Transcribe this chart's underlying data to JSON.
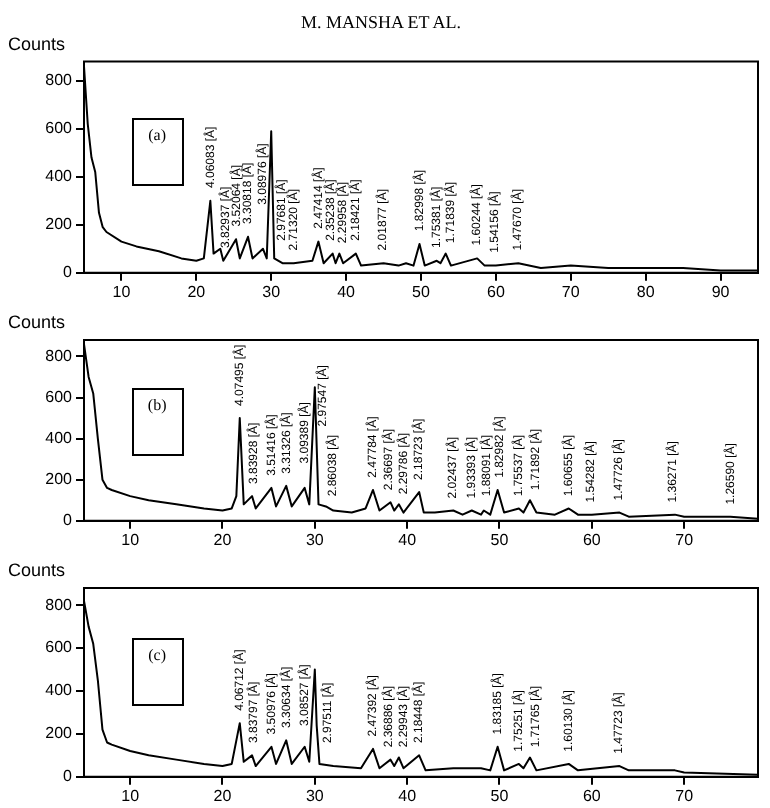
{
  "chart_data": [
    {
      "type": "line",
      "title": "M. MANSHA ET AL.",
      "ylabel": "Counts",
      "xlim": [
        5,
        95
      ],
      "ylim": [
        0,
        880
      ],
      "xticks": [
        10,
        20,
        30,
        40,
        50,
        60,
        70,
        80,
        90
      ],
      "yticks": [
        0,
        200,
        400,
        600,
        800
      ],
      "grid": false,
      "marker": "none",
      "legend": false,
      "series": [
        {
          "color": "#000000",
          "x": [
            5,
            5.5,
            6,
            6.5,
            7,
            7.5,
            8,
            10,
            12,
            15,
            18,
            20,
            21,
            21.87,
            22.3,
            23.2,
            23.6,
            25.3,
            25.8,
            26.9,
            27.5,
            28.9,
            29.4,
            30.0,
            30.4,
            31.5,
            33,
            35.5,
            36.3,
            37,
            38.2,
            38.6,
            39.1,
            39.6,
            41.3,
            42,
            45,
            47,
            48,
            49,
            49.8,
            50.5,
            52.1,
            52.6,
            53.3,
            54,
            57.5,
            58.5,
            60,
            63,
            66,
            70,
            75,
            80,
            85,
            90,
            95
          ],
          "values": [
            860,
            620,
            480,
            420,
            250,
            190,
            170,
            130,
            110,
            90,
            60,
            50,
            60,
            300,
            80,
            100,
            50,
            140,
            60,
            150,
            60,
            100,
            60,
            590,
            60,
            40,
            40,
            50,
            130,
            40,
            80,
            40,
            80,
            40,
            80,
            30,
            40,
            30,
            40,
            30,
            120,
            30,
            50,
            40,
            80,
            30,
            60,
            30,
            30,
            40,
            20,
            30,
            20,
            20,
            20,
            10,
            10
          ]
        }
      ],
      "annotations": [
        "(a)",
        {
          "text": "4.06083 [Å]",
          "x": 21.9,
          "y": 320
        },
        {
          "text": "3.82937 [Å]",
          "x": 23.9,
          "y": 70
        },
        {
          "text": "3.52064 [Å]",
          "x": 25.4,
          "y": 160
        },
        {
          "text": "3.30818 [Å]",
          "x": 26.9,
          "y": 170
        },
        {
          "text": "3.08976 [Å]",
          "x": 28.9,
          "y": 250
        },
        {
          "text": "2.97681 [Å]",
          "x": 31.4,
          "y": 100
        },
        {
          "text": "2.71320 [Å]",
          "x": 33.0,
          "y": 60
        },
        {
          "text": "2.47414 [Å]",
          "x": 36.3,
          "y": 150
        },
        {
          "text": "2.35238 [Å]",
          "x": 38.0,
          "y": 100
        },
        {
          "text": "2.29958 [Å]",
          "x": 39.6,
          "y": 90
        },
        {
          "text": "2.18421 [Å]",
          "x": 41.3,
          "y": 100
        },
        {
          "text": "2.01877 [Å]",
          "x": 44.9,
          "y": 60
        },
        {
          "text": "1.82998 [Å]",
          "x": 49.8,
          "y": 140
        },
        {
          "text": "1.75381 [Å]",
          "x": 52.1,
          "y": 70
        },
        {
          "text": "1.71839 [Å]",
          "x": 53.9,
          "y": 90
        },
        {
          "text": "1.60244 [Å]",
          "x": 57.5,
          "y": 80
        },
        {
          "text": "1.54156 [Å]",
          "x": 59.9,
          "y": 50
        },
        {
          "text": "1.47670 [Å]",
          "x": 62.9,
          "y": 60
        }
      ]
    },
    {
      "type": "line",
      "ylabel": "Counts",
      "xlim": [
        5,
        78
      ],
      "ylim": [
        0,
        880
      ],
      "xticks": [
        10,
        20,
        30,
        40,
        50,
        60,
        70
      ],
      "yticks": [
        0,
        200,
        400,
        600,
        800
      ],
      "grid": false,
      "marker": "none",
      "legend": false,
      "series": [
        {
          "color": "#000000",
          "x": [
            5,
            5.5,
            6,
            6.5,
            7,
            7.5,
            8,
            10,
            12,
            15,
            18,
            20,
            21,
            21.5,
            21.87,
            22.3,
            23.2,
            23.6,
            25.3,
            25.8,
            26.9,
            27.5,
            28.9,
            29.4,
            30.0,
            30.4,
            31.2,
            32,
            34,
            35.5,
            36.3,
            37,
            38.2,
            38.6,
            39.1,
            39.6,
            41.3,
            41.8,
            43,
            45,
            46,
            47,
            48,
            48.3,
            49,
            49.8,
            50.5,
            52.1,
            52.6,
            53.3,
            54,
            56,
            57.5,
            58.5,
            60,
            63,
            64,
            69,
            70,
            75,
            78
          ],
          "values": [
            860,
            700,
            620,
            400,
            200,
            160,
            150,
            120,
            100,
            80,
            60,
            50,
            60,
            120,
            500,
            80,
            120,
            60,
            160,
            70,
            170,
            70,
            160,
            80,
            650,
            80,
            70,
            50,
            40,
            60,
            150,
            50,
            90,
            50,
            80,
            40,
            140,
            40,
            40,
            50,
            30,
            50,
            30,
            50,
            30,
            150,
            40,
            60,
            40,
            100,
            40,
            30,
            60,
            30,
            30,
            40,
            20,
            30,
            20,
            20,
            10
          ]
        }
      ],
      "annotations": [
        "(b)",
        {
          "text": "4.07495 [Å]",
          "x": 21.9,
          "y": 520
        },
        {
          "text": "3.83928 [Å]",
          "x": 23.4,
          "y": 140
        },
        {
          "text": "3.51416 [Å]",
          "x": 25.3,
          "y": 180
        },
        {
          "text": "3.31326 [Å]",
          "x": 26.9,
          "y": 190
        },
        {
          "text": "3.09389 [Å]",
          "x": 28.9,
          "y": 240
        },
        {
          "text": "2.97547 [Å]",
          "x": 30.9,
          "y": 420
        },
        {
          "text": "2.86038 [Å]",
          "x": 31.9,
          "y": 80
        },
        {
          "text": "2.47784 [Å]",
          "x": 36.3,
          "y": 170
        },
        {
          "text": "2.36697 [Å]",
          "x": 38.0,
          "y": 110
        },
        {
          "text": "2.29786 [Å]",
          "x": 39.6,
          "y": 90
        },
        {
          "text": "2.18723 [Å]",
          "x": 41.3,
          "y": 160
        },
        {
          "text": "2.02437 [Å]",
          "x": 44.9,
          "y": 70
        },
        {
          "text": "1.93393 [Å]",
          "x": 47.0,
          "y": 70
        },
        {
          "text": "1.88091 [Å]",
          "x": 48.6,
          "y": 80
        },
        {
          "text": "1.82982 [Å]",
          "x": 50.0,
          "y": 170
        },
        {
          "text": "1.75537 [Å]",
          "x": 52.1,
          "y": 80
        },
        {
          "text": "1.71892 [Å]",
          "x": 53.9,
          "y": 110
        },
        {
          "text": "1.60655 [Å]",
          "x": 57.5,
          "y": 80
        },
        {
          "text": "1.54282 [Å]",
          "x": 59.9,
          "y": 50
        },
        {
          "text": "1.47726 [Å]",
          "x": 62.9,
          "y": 60
        },
        {
          "text": "1.36271 [Å]",
          "x": 68.8,
          "y": 50
        },
        {
          "text": "1.26590 [Å]",
          "x": 75.0,
          "y": 40
        }
      ]
    },
    {
      "type": "line",
      "ylabel": "Counts",
      "xlim": [
        5,
        78
      ],
      "ylim": [
        0,
        880
      ],
      "xticks": [
        10,
        20,
        30,
        40,
        50,
        60,
        70
      ],
      "yticks": [
        0,
        200,
        400,
        600,
        800
      ],
      "grid": false,
      "marker": "none",
      "legend": false,
      "series": [
        {
          "color": "#000000",
          "x": [
            5,
            5.5,
            6,
            6.5,
            7,
            7.5,
            8,
            10,
            12,
            15,
            18,
            20,
            21,
            21.87,
            22.3,
            23.2,
            23.6,
            25.3,
            25.8,
            26.9,
            27.5,
            28.9,
            29.4,
            30.0,
            30.2,
            30.5,
            32,
            35,
            36.3,
            37,
            38.2,
            38.6,
            39.1,
            39.6,
            41.3,
            42,
            45,
            48,
            49,
            49.8,
            50.5,
            52.1,
            52.6,
            53.3,
            54,
            57.5,
            58.5,
            63,
            64,
            69,
            70,
            78
          ],
          "values": [
            820,
            700,
            620,
            450,
            220,
            160,
            150,
            120,
            100,
            80,
            60,
            50,
            60,
            250,
            70,
            100,
            50,
            140,
            60,
            170,
            60,
            140,
            70,
            500,
            240,
            60,
            50,
            40,
            130,
            40,
            80,
            50,
            90,
            40,
            100,
            30,
            40,
            40,
            30,
            140,
            30,
            60,
            40,
            90,
            30,
            60,
            30,
            50,
            30,
            30,
            20,
            10
          ]
        }
      ],
      "annotations": [
        "(c)",
        {
          "text": "4.06712 [Å]",
          "x": 21.9,
          "y": 270
        },
        {
          "text": "3.83797 [Å]",
          "x": 23.4,
          "y": 120
        },
        {
          "text": "3.50976 [Å]",
          "x": 25.3,
          "y": 160
        },
        {
          "text": "3.30634 [Å]",
          "x": 26.9,
          "y": 190
        },
        {
          "text": "3.08527 [Å]",
          "x": 28.9,
          "y": 200
        },
        {
          "text": "2.97511 [Å]",
          "x": 31.4,
          "y": 120
        },
        {
          "text": "2.47392 [Å]",
          "x": 36.3,
          "y": 150
        },
        {
          "text": "2.36886 [Å]",
          "x": 38.0,
          "y": 100
        },
        {
          "text": "2.29943 [Å]",
          "x": 39.6,
          "y": 100
        },
        {
          "text": "2.18448 [Å]",
          "x": 41.3,
          "y": 120
        },
        {
          "text": "1.83185 [Å]",
          "x": 49.8,
          "y": 160
        },
        {
          "text": "1.75251 [Å]",
          "x": 52.1,
          "y": 80
        },
        {
          "text": "1.71765 [Å]",
          "x": 53.9,
          "y": 100
        },
        {
          "text": "1.60130 [Å]",
          "x": 57.5,
          "y": 80
        },
        {
          "text": "1.47723 [Å]",
          "x": 62.9,
          "y": 70
        }
      ]
    }
  ]
}
